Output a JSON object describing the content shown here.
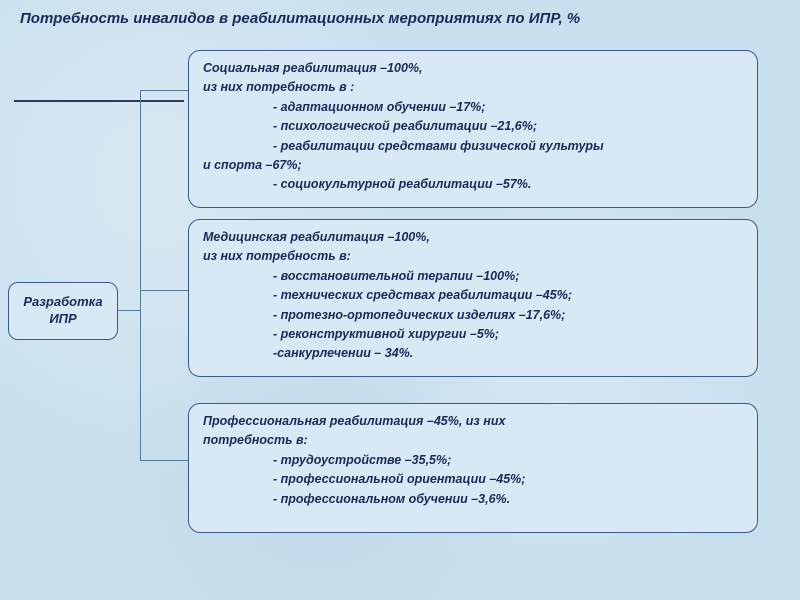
{
  "title": "Потребность инвалидов в реабилитационных мероприятиях по ИПР, %",
  "leftBox": {
    "line1": "Разработка",
    "line2": "ИПР"
  },
  "box1": {
    "header": "Социальная реабилитация –100%,",
    "sub": "из них потребность в :",
    "items": [
      "- адаптационном обучении –17%;",
      "- психологической реабилитации –21,6%;",
      "- реабилитации средствами физической культуры"
    ],
    "tail1": "и спорта –67%;",
    "tail2": "- социокультурной реабилитации  –57%."
  },
  "box2": {
    "header": "Медицинская реабилитация –100%,",
    "sub": "из них потребность в:",
    "items": [
      "- восстановительной терапии –100%;",
      "- технических средствах реабилитации –45%;",
      "- протезно-ортопедических изделиях –17,6%;",
      "- реконструктивной хирургии –5%;",
      "-санкурлечении – 34%."
    ]
  },
  "box3": {
    "header": "Профессиональная реабилитация –45%, из них",
    "sub": "потребность в:",
    "items": [
      "- трудоустройстве –35,5%;",
      "- профессиональной ориентации  –45%;",
      "- профессиональном обучении –3,6%."
    ]
  },
  "style": {
    "background_base": "#c8dfed",
    "box_bg": "#d8e8f4",
    "box_border": "#3a5a8a",
    "text_color": "#1a2a5a",
    "connector_color": "#5a7a9a",
    "title_fontsize": 15,
    "body_fontsize": 12.5,
    "border_radius": 12,
    "font_style": "italic",
    "font_weight": "bold"
  }
}
